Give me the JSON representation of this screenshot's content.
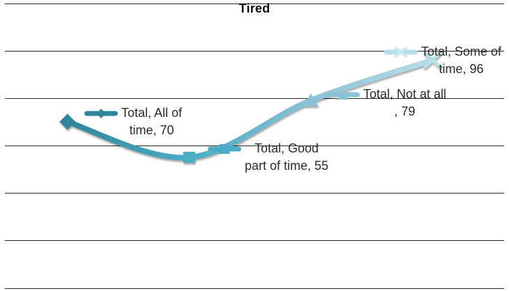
{
  "chart_data": {
    "type": "line",
    "title": "Tired",
    "categories": [
      "All of time",
      "Good part of time",
      "Not at all",
      "Some of time"
    ],
    "series": [
      {
        "name": "Total",
        "values": [
          70,
          55,
          79,
          96
        ]
      }
    ],
    "xlabel": "",
    "ylabel": "",
    "ylim": [
      0,
      120
    ],
    "y_step": 20,
    "grid": true,
    "axis_tick_labels_visible": false,
    "legend_position": "none",
    "smooth_line": true,
    "point_colors": [
      "#31859B",
      "#4BACC6",
      "#8BC1D5",
      "#B7DEE8"
    ],
    "marker_shapes": [
      "diamond",
      "square",
      "triangle",
      "x"
    ],
    "gridline_color": "#262626",
    "label_text_color": "#2b2b2b",
    "background_color": "#ffffff",
    "data_labels": [
      {
        "line1": "Total, All of",
        "line2": "time, 70"
      },
      {
        "line1": "Total, Good",
        "line2": "part of time, 55"
      },
      {
        "line1": "Total, Not at all",
        "line2": ", 79"
      },
      {
        "line1": "Total, Some of",
        "line2": "time, 96"
      }
    ]
  }
}
